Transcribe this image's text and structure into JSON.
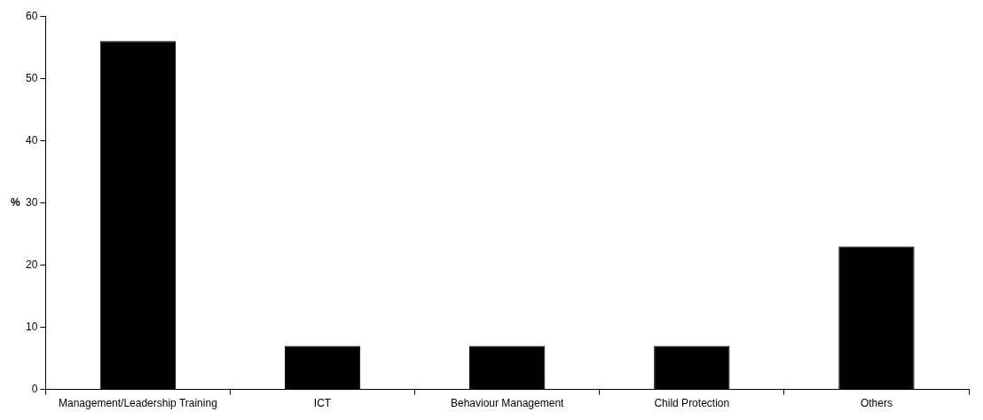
{
  "chart_data": {
    "type": "bar",
    "ylabel": "%",
    "categories": [
      "Management/Leadership Training",
      "ICT",
      "Behaviour Management",
      "Child Protection",
      "Others"
    ],
    "values": [
      56,
      7,
      7,
      7,
      23
    ],
    "color": "#000000",
    "ylim": [
      0,
      60
    ],
    "yticks": [
      0,
      10,
      20,
      30,
      40,
      50,
      60
    ],
    "grid": false,
    "legend": false
  }
}
